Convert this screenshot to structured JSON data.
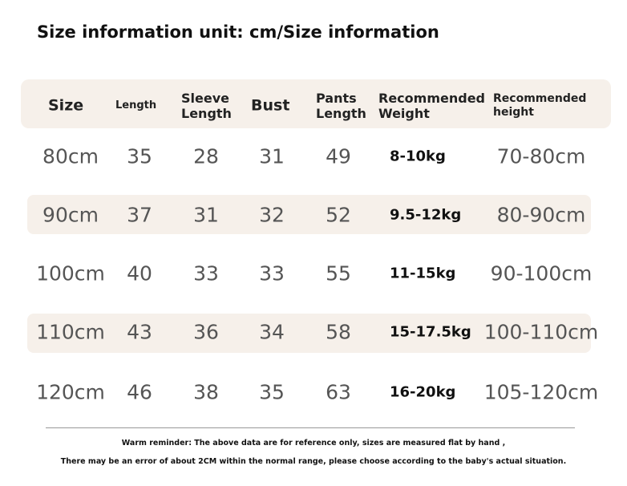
{
  "header": {
    "title": "Size information unit: cm/Size information"
  },
  "table": {
    "columns": [
      "Size",
      "Length",
      "Sleeve\nLength",
      "Bust",
      "Pants\nLength",
      "Recommended\nWeight",
      "Recommended\nheight"
    ],
    "rows": [
      [
        "80cm",
        35,
        28,
        31,
        49,
        "8-10kg",
        "70-80cm"
      ],
      [
        "90cm",
        37,
        31,
        32,
        52,
        "9.5-12kg",
        "80-90cm"
      ],
      [
        "100cm",
        40,
        33,
        33,
        55,
        "11-15kg",
        "90-100cm"
      ],
      [
        "110cm",
        43,
        36,
        34,
        58,
        "15-17.5kg",
        "100-110cm"
      ],
      [
        "120cm",
        46,
        38,
        35,
        63,
        "16-20kg",
        "105-120cm"
      ]
    ]
  },
  "footer": {
    "notes": [
      "Warm reminder: The above data are for reference only, sizes are measured flat by hand ,",
      "There may be an error of about 2CM within the normal range, please choose according to the baby's actual situation."
    ]
  }
}
